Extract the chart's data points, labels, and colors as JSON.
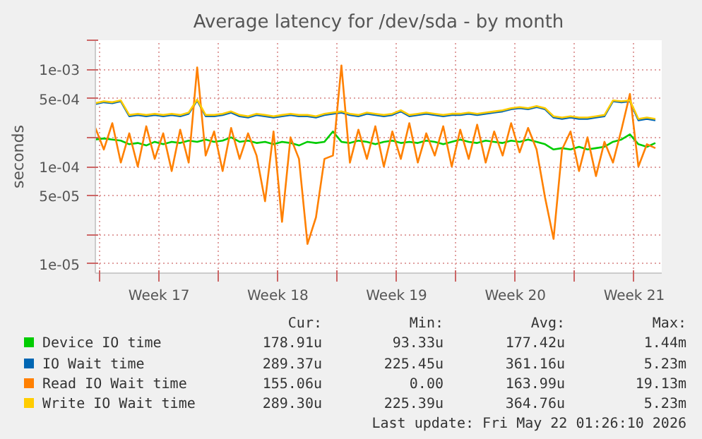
{
  "chart_data": {
    "type": "line",
    "title": "Average latency for /dev/sda - by month",
    "ylabel": "seconds",
    "log": "y",
    "grid": true,
    "legend": "bottom",
    "marker": "none",
    "line_style": "solid",
    "x": [
      "2026-04-19T18:00",
      "2026-04-20T06:00",
      "2026-04-20T18:00",
      "2026-04-21T06:00",
      "2026-04-21T18:00",
      "2026-04-22T06:00",
      "2026-04-22T18:00",
      "2026-04-23T06:00",
      "2026-04-23T18:00",
      "2026-04-24T06:00",
      "2026-04-24T18:00",
      "2026-04-25T06:00",
      "2026-04-25T18:00",
      "2026-04-26T06:00",
      "2026-04-26T18:00",
      "2026-04-27T06:00",
      "2026-04-27T18:00",
      "2026-04-28T06:00",
      "2026-04-28T18:00",
      "2026-04-29T06:00",
      "2026-04-29T18:00",
      "2026-04-30T06:00",
      "2026-04-30T18:00",
      "2026-05-01T06:00",
      "2026-05-01T18:00",
      "2026-05-02T06:00",
      "2026-05-02T18:00",
      "2026-05-03T06:00",
      "2026-05-03T18:00",
      "2026-05-04T06:00",
      "2026-05-04T18:00",
      "2026-05-05T06:00",
      "2026-05-05T18:00",
      "2026-05-06T06:00",
      "2026-05-06T18:00",
      "2026-05-07T06:00",
      "2026-05-07T18:00",
      "2026-05-08T06:00",
      "2026-05-08T18:00",
      "2026-05-09T06:00",
      "2026-05-09T18:00",
      "2026-05-10T06:00",
      "2026-05-10T18:00",
      "2026-05-11T06:00",
      "2026-05-11T18:00",
      "2026-05-12T06:00",
      "2026-05-12T18:00",
      "2026-05-13T06:00",
      "2026-05-13T18:00",
      "2026-05-14T06:00",
      "2026-05-14T18:00",
      "2026-05-15T06:00",
      "2026-05-15T18:00",
      "2026-05-16T06:00",
      "2026-05-16T18:00",
      "2026-05-17T06:00",
      "2026-05-17T18:00",
      "2026-05-18T06:00",
      "2026-05-18T18:00",
      "2026-05-19T06:00",
      "2026-05-19T18:00",
      "2026-05-20T06:00",
      "2026-05-20T18:00",
      "2026-05-21T06:00",
      "2026-05-21T18:00",
      "2026-05-22T06:00",
      "2026-05-22T18:00"
    ],
    "xlim": [
      "2026-04-19T18:00",
      "2026-05-23T03:00"
    ],
    "xticks": [
      {
        "value": "2026-04-20T00:00",
        "label": null
      },
      {
        "value": "2026-04-23T12:00",
        "label": "Week 17"
      },
      {
        "value": "2026-04-27T00:00",
        "label": null
      },
      {
        "value": "2026-04-30T12:00",
        "label": "Week 18"
      },
      {
        "value": "2026-05-04T00:00",
        "label": null
      },
      {
        "value": "2026-05-07T12:00",
        "label": "Week 19"
      },
      {
        "value": "2026-05-11T00:00",
        "label": null
      },
      {
        "value": "2026-05-14T12:00",
        "label": "Week 20"
      },
      {
        "value": "2026-05-18T00:00",
        "label": null
      },
      {
        "value": "2026-05-21T12:00",
        "label": "Week 21"
      }
    ],
    "ylim": [
      8e-06,
      0.002
    ],
    "yticks": [
      {
        "value": 1e-05,
        "label": "1e-05"
      },
      {
        "value": 2e-05,
        "label": null
      },
      {
        "value": 5e-05,
        "label": "5e-05"
      },
      {
        "value": 0.0001,
        "label": "1e-04"
      },
      {
        "value": 0.0002,
        "label": null
      },
      {
        "value": 0.0005,
        "label": "5e-04"
      },
      {
        "value": 0.001,
        "label": "1e-03"
      },
      {
        "value": 0.002,
        "label": null
      }
    ],
    "series": [
      {
        "name": "Device IO time",
        "color": "#00cc00",
        "values": [
          0.00019,
          0.000195,
          0.00019,
          0.000185,
          0.00017,
          0.000175,
          0.000165,
          0.00018,
          0.00017,
          0.00018,
          0.000175,
          0.000185,
          0.00018,
          0.00019,
          0.00018,
          0.000185,
          0.0002,
          0.00018,
          0.000185,
          0.000175,
          0.00018,
          0.00017,
          0.00018,
          0.000175,
          0.000165,
          0.00018,
          0.000175,
          0.00018,
          0.00023,
          0.00018,
          0.000175,
          0.000185,
          0.00018,
          0.00017,
          0.00018,
          0.000185,
          0.000175,
          0.00018,
          0.000175,
          0.000185,
          0.00018,
          0.00017,
          0.00018,
          0.00019,
          0.00018,
          0.000175,
          0.000185,
          0.00018,
          0.000175,
          0.000185,
          0.00018,
          0.00019,
          0.00018,
          0.00017,
          0.00015,
          0.000155,
          0.00015,
          0.00016,
          0.00015,
          0.000155,
          0.00016,
          0.00018,
          0.00019,
          0.000215,
          0.00017,
          0.00016,
          0.000175
        ]
      },
      {
        "name": "IO Wait time",
        "color": "#0066b3",
        "values": [
          0.00044,
          0.00046,
          0.00045,
          0.00047,
          0.00033,
          0.00034,
          0.00033,
          0.00034,
          0.00033,
          0.00034,
          0.00033,
          0.00035,
          0.00048,
          0.00033,
          0.00033,
          0.00034,
          0.00036,
          0.00033,
          0.00032,
          0.00034,
          0.00033,
          0.00032,
          0.00033,
          0.00034,
          0.00033,
          0.00033,
          0.00032,
          0.00034,
          0.00035,
          0.00036,
          0.00034,
          0.00033,
          0.00035,
          0.00034,
          0.00033,
          0.00034,
          0.00037,
          0.00033,
          0.00034,
          0.00035,
          0.00034,
          0.00033,
          0.00034,
          0.00034,
          0.00035,
          0.00034,
          0.00035,
          0.00036,
          0.00037,
          0.00039,
          0.0004,
          0.00039,
          0.00041,
          0.00039,
          0.00032,
          0.00031,
          0.00032,
          0.00031,
          0.00031,
          0.00032,
          0.00033,
          0.00047,
          0.00046,
          0.00047,
          0.0003,
          0.00031,
          0.0003
        ]
      },
      {
        "name": "Read IO Wait time",
        "color": "#ff8000",
        "values": [
          0.00025,
          0.00015,
          0.00028,
          0.00011,
          0.00022,
          0.0001,
          0.00026,
          0.00012,
          0.00022,
          9e-05,
          0.00024,
          0.00011,
          0.00105,
          0.00013,
          0.00023,
          9e-05,
          0.00025,
          0.00012,
          0.00022,
          0.00013,
          4.4e-05,
          0.00023,
          2.7e-05,
          0.0002,
          0.00012,
          1.6e-05,
          3e-05,
          0.00012,
          0.00013,
          0.0011,
          0.00011,
          0.00024,
          0.00012,
          0.00026,
          0.0001,
          0.00023,
          0.00012,
          0.00028,
          0.00011,
          0.00022,
          0.00013,
          0.00026,
          0.0001,
          0.00024,
          0.00012,
          0.00027,
          0.00011,
          0.00023,
          0.00013,
          0.00028,
          0.00014,
          0.00025,
          0.00015,
          4.8e-05,
          1.8e-05,
          0.00015,
          0.00023,
          9e-05,
          0.0002,
          8e-05,
          0.00018,
          0.00011,
          0.00024,
          0.00056,
          0.0001,
          0.00017,
          0.000155
        ]
      },
      {
        "name": "Write IO Wait time",
        "color": "#ffcc00",
        "values": [
          0.00045,
          0.00047,
          0.00046,
          0.00048,
          0.00034,
          0.00035,
          0.00034,
          0.00035,
          0.00034,
          0.00035,
          0.00034,
          0.00036,
          0.00049,
          0.00034,
          0.00034,
          0.00035,
          0.00037,
          0.00034,
          0.00033,
          0.00035,
          0.00034,
          0.00033,
          0.00034,
          0.00035,
          0.00034,
          0.00034,
          0.00033,
          0.00035,
          0.00036,
          0.00037,
          0.00035,
          0.00034,
          0.00036,
          0.00035,
          0.00034,
          0.00035,
          0.00038,
          0.00034,
          0.00035,
          0.00036,
          0.00035,
          0.00034,
          0.00035,
          0.00035,
          0.00036,
          0.00035,
          0.00036,
          0.00037,
          0.00038,
          0.0004,
          0.00041,
          0.0004,
          0.00042,
          0.0004,
          0.00033,
          0.00032,
          0.00033,
          0.00032,
          0.00032,
          0.00033,
          0.00034,
          0.00048,
          0.00047,
          0.00048,
          0.00031,
          0.00032,
          0.00031
        ]
      }
    ],
    "annotations": [
      "Cur:",
      "Min:",
      "Avg:",
      "Max:",
      "178.91u",
      "93.33u",
      "177.42u",
      "1.44m",
      "289.37u",
      "225.45u",
      "361.16u",
      "5.23m",
      "155.06u",
      "0.00",
      "163.99u",
      "19.13m",
      "289.30u",
      "225.39u",
      "364.76u",
      "5.23m",
      "Last update: Fri May 22 01:26:10 2026"
    ]
  }
}
